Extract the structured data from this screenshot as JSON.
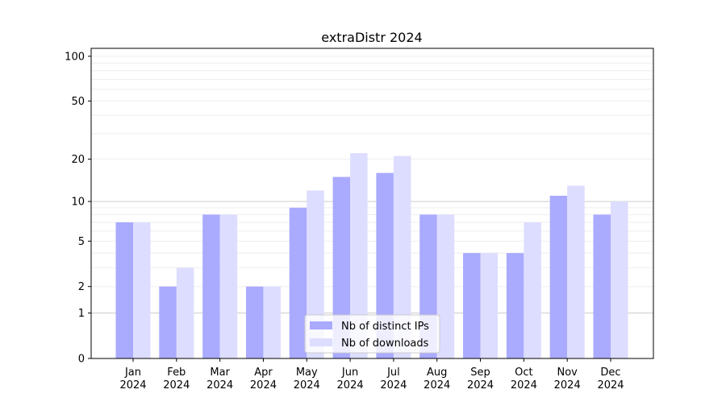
{
  "chart_data": {
    "type": "bar",
    "title": "extraDistr 2024",
    "xlabel": "",
    "ylabel": "",
    "yscale": "symlog (log10(1+y))",
    "ylim": [
      0,
      113
    ],
    "yticks": [
      0,
      1,
      2,
      5,
      10,
      20,
      50,
      100
    ],
    "grid": true,
    "legend_position": "bottom-center",
    "categories": [
      [
        "Jan",
        "2024"
      ],
      [
        "Feb",
        "2024"
      ],
      [
        "Mar",
        "2024"
      ],
      [
        "Apr",
        "2024"
      ],
      [
        "May",
        "2024"
      ],
      [
        "Jun",
        "2024"
      ],
      [
        "Jul",
        "2024"
      ],
      [
        "Aug",
        "2024"
      ],
      [
        "Sep",
        "2024"
      ],
      [
        "Oct",
        "2024"
      ],
      [
        "Nov",
        "2024"
      ],
      [
        "Dec",
        "2024"
      ]
    ],
    "series": [
      {
        "name": "Nb of distinct IPs",
        "color": "#aaaaff",
        "values": [
          7,
          2,
          8,
          2,
          9,
          15,
          16,
          8,
          4,
          4,
          11,
          8
        ]
      },
      {
        "name": "Nb of downloads",
        "color": "#ddddff",
        "values": [
          7,
          3,
          8,
          2,
          12,
          22,
          21,
          8,
          4,
          7,
          13,
          10
        ]
      }
    ]
  }
}
